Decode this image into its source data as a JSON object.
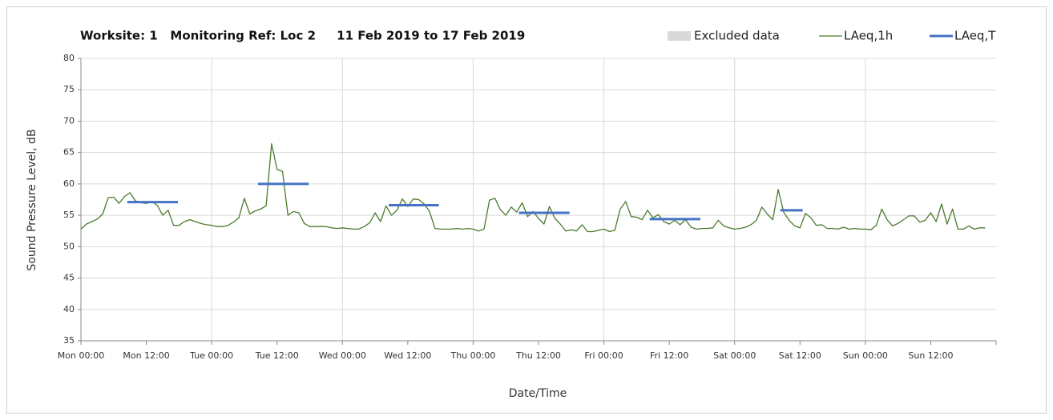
{
  "chart_data": {
    "type": "line",
    "title": "Worksite: 1   Monitoring Ref: Loc 2     11 Feb 2019 to 17 Feb 2019",
    "x_label": "Date/Time",
    "y_label": "Sound Pressure Level, dB",
    "xlim": [
      0,
      168
    ],
    "xticks": [
      {
        "value": 0,
        "label": "Mon 00:00"
      },
      {
        "value": 12,
        "label": "Mon 12:00"
      },
      {
        "value": 24,
        "label": "Tue 00:00"
      },
      {
        "value": 36,
        "label": "Tue 12:00"
      },
      {
        "value": 48,
        "label": "Wed 00:00"
      },
      {
        "value": 60,
        "label": "Wed 12:00"
      },
      {
        "value": 72,
        "label": "Thu 00:00"
      },
      {
        "value": 84,
        "label": "Thu 12:00"
      },
      {
        "value": 96,
        "label": "Fri 00:00"
      },
      {
        "value": 108,
        "label": "Fri 12:00"
      },
      {
        "value": 120,
        "label": "Sat 00:00"
      },
      {
        "value": 132,
        "label": "Sat 12:00"
      },
      {
        "value": 144,
        "label": "Sun 00:00"
      },
      {
        "value": 156,
        "label": "Sun 12:00"
      }
    ],
    "ylim": [
      35,
      80
    ],
    "yticks": [
      35,
      40,
      45,
      50,
      55,
      60,
      65,
      70,
      75,
      80
    ],
    "grid": true,
    "legend": "top-right",
    "series": [
      {
        "name": "Excluded data",
        "color": "#d9d9d9"
      },
      {
        "name": "LAeq,1h",
        "color": "#4a7a2c",
        "x": [
          0,
          1,
          2,
          3,
          4,
          5,
          6,
          7,
          8,
          9,
          10,
          11,
          12,
          13,
          14,
          15,
          16,
          17,
          18,
          19,
          20,
          21,
          22,
          23,
          24,
          25,
          26,
          27,
          28,
          29,
          30,
          31,
          32,
          33,
          34,
          35,
          36,
          37,
          38,
          39,
          40,
          41,
          42,
          43,
          44,
          45,
          46,
          47,
          48,
          49,
          50,
          51,
          52,
          53,
          54,
          55,
          56,
          57,
          58,
          59,
          60,
          61,
          62,
          63,
          64,
          65,
          66,
          67,
          68,
          69,
          70,
          71,
          72,
          73,
          74,
          75,
          76,
          77,
          78,
          79,
          80,
          81,
          82,
          83,
          84,
          85,
          86,
          87,
          88,
          89,
          90,
          91,
          92,
          93,
          94,
          95,
          96,
          97,
          98,
          99,
          100,
          101,
          102,
          103,
          104,
          105,
          106,
          107,
          108,
          109,
          110,
          111,
          112,
          113,
          114,
          115,
          116,
          117,
          118,
          119,
          120,
          121,
          122,
          123,
          124,
          125,
          126,
          127,
          128,
          129,
          130,
          131,
          132,
          133,
          134,
          135,
          136,
          137,
          138,
          139,
          140,
          141,
          142,
          143,
          144,
          145,
          146,
          147,
          148,
          149,
          150,
          151,
          152,
          153,
          154,
          155,
          156,
          157,
          158,
          159,
          160,
          161,
          162,
          163,
          164,
          165,
          166
        ],
        "values": [
          52.8,
          53.6,
          54.0,
          54.4,
          55.2,
          57.8,
          57.9,
          56.9,
          58.0,
          58.6,
          57.3,
          57.0,
          56.9,
          57.2,
          56.6,
          55.0,
          55.8,
          53.4,
          53.4,
          54.0,
          54.3,
          54.0,
          53.7,
          53.5,
          53.4,
          53.2,
          53.2,
          53.4,
          53.9,
          54.6,
          57.7,
          55.2,
          55.7,
          56.0,
          56.5,
          66.4,
          62.3,
          62.0,
          55.0,
          55.6,
          55.4,
          53.7,
          53.2,
          53.2,
          53.2,
          53.2,
          53.0,
          52.9,
          53.0,
          52.9,
          52.8,
          52.8,
          53.2,
          53.8,
          55.4,
          54.0,
          56.5,
          55.0,
          55.8,
          57.6,
          56.4,
          57.6,
          57.5,
          56.8,
          55.6,
          52.9,
          52.8,
          52.8,
          52.8,
          52.9,
          52.8,
          52.9,
          52.8,
          52.5,
          52.8,
          57.4,
          57.7,
          55.9,
          55.0,
          56.3,
          55.5,
          57.0,
          54.8,
          55.6,
          54.5,
          53.6,
          56.4,
          54.5,
          53.6,
          52.5,
          52.7,
          52.5,
          53.5,
          52.4,
          52.4,
          52.6,
          52.8,
          52.4,
          52.6,
          56.0,
          57.2,
          54.8,
          54.7,
          54.3,
          55.8,
          54.6,
          55.1,
          54.0,
          53.6,
          54.2,
          53.5,
          54.3,
          53.1,
          52.8,
          52.9,
          52.9,
          53.0,
          54.2,
          53.3,
          53.0,
          52.8,
          52.9,
          53.1,
          53.5,
          54.2,
          56.3,
          55.2,
          54.3,
          59.1,
          55.5,
          54.2,
          53.3,
          53.0,
          55.3,
          54.6,
          53.4,
          53.5,
          52.9,
          52.9,
          52.8,
          53.1,
          52.8,
          52.9,
          52.8,
          52.8,
          52.7,
          53.4,
          56.0,
          54.3,
          53.3,
          53.7,
          54.3,
          54.9,
          54.9,
          53.9,
          54.2,
          55.4,
          54.0,
          56.8,
          53.6,
          56.0,
          52.8,
          52.8,
          53.3,
          52.8,
          53.0,
          53.0
        ]
      },
      {
        "name": "LAeq,T",
        "color": "#4472c4",
        "segments": [
          {
            "x": [
              8.5,
              17.8
            ],
            "value": 57.1
          },
          {
            "x": [
              32.5,
              41.8
            ],
            "value": 60.0
          },
          {
            "x": [
              56.5,
              65.7
            ],
            "value": 56.6
          },
          {
            "x": [
              80.4,
              89.7
            ],
            "value": 55.4
          },
          {
            "x": [
              104.4,
              113.7
            ],
            "value": 54.4
          },
          {
            "x": [
              128.4,
              132.5
            ],
            "value": 55.8
          }
        ]
      }
    ]
  }
}
